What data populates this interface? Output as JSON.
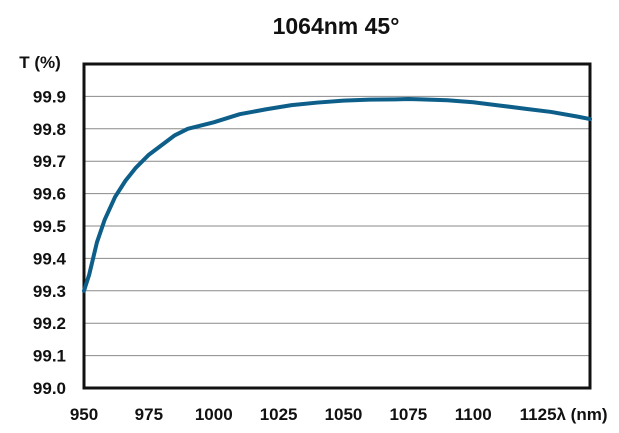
{
  "chart_data": {
    "type": "line",
    "title": "1064nm 45°",
    "ylabel": "T (%)",
    "xlabel": "λ (nm)",
    "xlim": [
      950,
      1145
    ],
    "ylim": [
      99.0,
      100.0
    ],
    "x_ticks": [
      "950",
      "975",
      "1000",
      "1025",
      "1050",
      "1075",
      "1100",
      "1125"
    ],
    "y_ticks": [
      "99.0",
      "99.1",
      "99.2",
      "99.3",
      "99.4",
      "99.5",
      "99.6",
      "99.7",
      "99.8",
      "99.9"
    ],
    "grid": true,
    "line_color": "#0d5f8a",
    "series": [
      {
        "x": [
          950,
          952,
          955,
          958,
          962,
          966,
          970,
          975,
          980,
          985,
          990,
          995,
          1000,
          1010,
          1020,
          1030,
          1040,
          1050,
          1060,
          1070,
          1075,
          1080,
          1090,
          1100,
          1110,
          1120,
          1130,
          1140,
          1145
        ],
        "y": [
          99.3,
          99.35,
          99.45,
          99.52,
          99.59,
          99.64,
          99.68,
          99.72,
          99.75,
          99.78,
          99.8,
          99.81,
          99.82,
          99.845,
          99.86,
          99.873,
          99.881,
          99.887,
          99.89,
          99.891,
          99.892,
          99.891,
          99.888,
          99.882,
          99.872,
          99.862,
          99.852,
          99.838,
          99.83
        ]
      }
    ]
  }
}
